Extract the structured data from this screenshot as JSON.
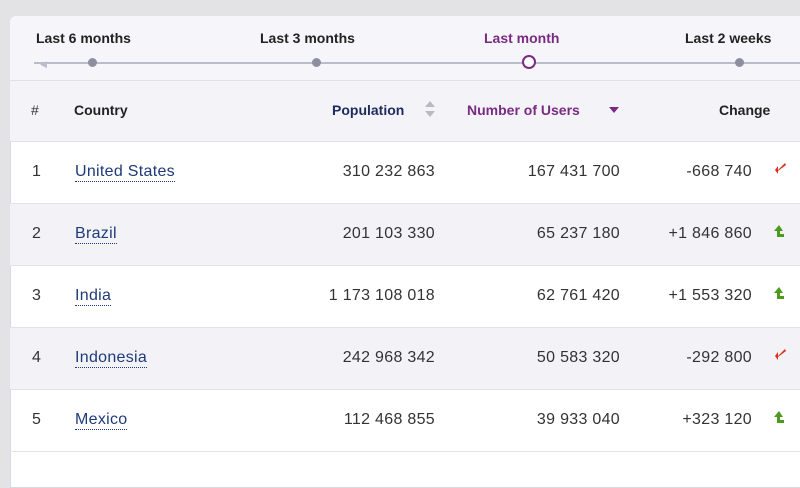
{
  "timeline": {
    "periods": [
      {
        "label": "Last 6 months",
        "active": false
      },
      {
        "label": "Last 3 months",
        "active": false
      },
      {
        "label": "Last month",
        "active": true
      },
      {
        "label": "Last 2 weeks",
        "active": false
      }
    ]
  },
  "table": {
    "columns": {
      "rank": "#",
      "country": "Country",
      "population": "Population",
      "users": "Number of Users",
      "change": "Change"
    },
    "sort": {
      "column": "users",
      "direction": "desc"
    },
    "rows": [
      {
        "rank": "1",
        "country": "United States",
        "population": "310 232 863",
        "users": "167 431 700",
        "change": "-668 740",
        "trend": "down"
      },
      {
        "rank": "2",
        "country": "Brazil",
        "population": "201 103 330",
        "users": "65 237 180",
        "change": "+1 846 860",
        "trend": "up"
      },
      {
        "rank": "3",
        "country": "India",
        "population": "1 173 108 018",
        "users": "62 761 420",
        "change": "+1 553 320",
        "trend": "up"
      },
      {
        "rank": "4",
        "country": "Indonesia",
        "population": "242 968 342",
        "users": "50 583 320",
        "change": "-292 800",
        "trend": "down"
      },
      {
        "rank": "5",
        "country": "Mexico",
        "population": "112 468 855",
        "users": "39 933 040",
        "change": "+323 120",
        "trend": "up"
      }
    ]
  },
  "colors": {
    "accent": "#7a2a82",
    "negative": "#d9311e",
    "positive": "#4d9a1e",
    "link": "#1e3a7a"
  },
  "icons": {
    "trend_down": "arrow-down-left-icon",
    "trend_up": "arrow-up-icon"
  }
}
